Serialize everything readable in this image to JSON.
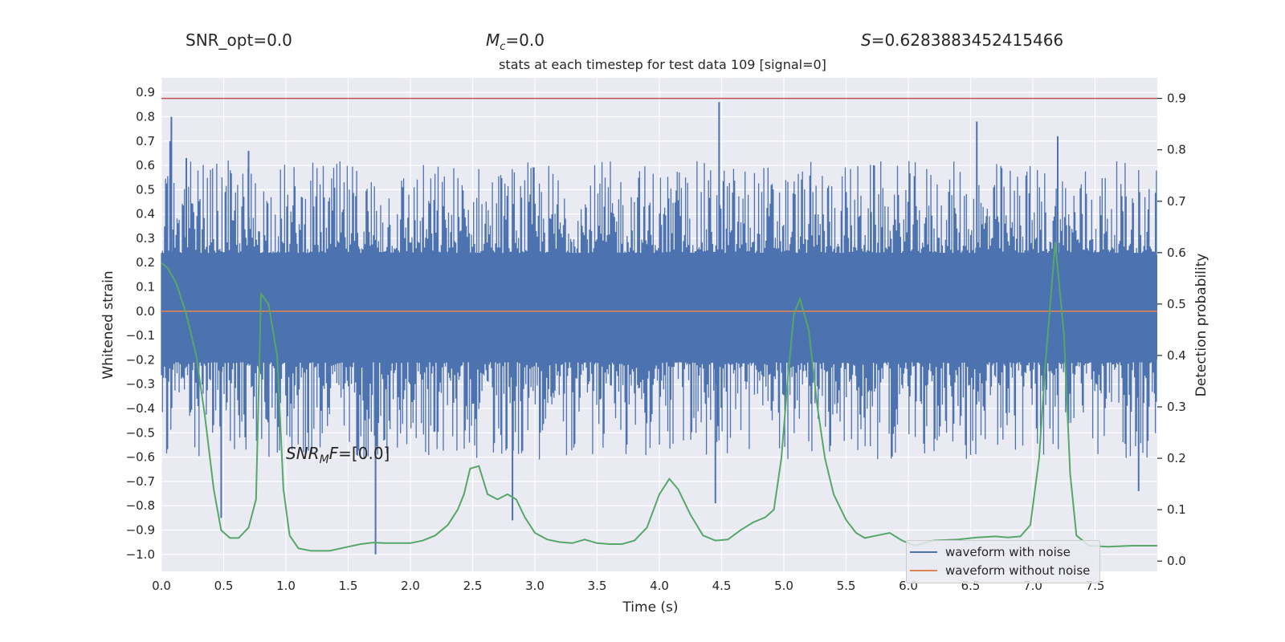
{
  "header": {
    "snr_opt": "SNR_opt=0.0",
    "mc_symbol": "M",
    "mc_sub": "c",
    "mc_value": "=0.0",
    "s_symbol": "S",
    "s_value": "=0.6283883452415466",
    "title": "stats at each timestep for test data 109 [signal=0]"
  },
  "annotation": {
    "snr_sym": "SNR",
    "snr_sub": "M",
    "snr_sym2": "F",
    "snr_value": "=[0.0]"
  },
  "legend": {
    "entries": [
      {
        "label": "waveform with noise",
        "color": "#4c72b0"
      },
      {
        "label": "waveform without noise",
        "color": "#dd8452"
      }
    ]
  },
  "colors": {
    "plot_bg": "#eaeaf2",
    "grid": "#ffffff",
    "noise": "#4c72b0",
    "no_noise": "#dd8452",
    "probability": "#55a868",
    "threshold": "#c44e52"
  },
  "chart_data": {
    "type": "line",
    "xlabel": "Time (s)",
    "ylabel_left": "Whitened strain",
    "ylabel_right": "Detection probability",
    "xlim": [
      0.0,
      8.0
    ],
    "ylim_left": [
      -1.07,
      0.96
    ],
    "ylim_right": [
      -0.02,
      0.94
    ],
    "x_ticks": [
      "0.0",
      "0.5",
      "1.0",
      "1.5",
      "2.0",
      "2.5",
      "3.0",
      "3.5",
      "4.0",
      "4.5",
      "5.0",
      "5.5",
      "6.0",
      "6.5",
      "7.0",
      "7.5"
    ],
    "y_left_ticks": [
      "0.9",
      "0.8",
      "0.7",
      "0.6",
      "0.5",
      "0.4",
      "0.3",
      "0.2",
      "0.1",
      "0.0",
      "−0.1",
      "−0.2",
      "−0.3",
      "−0.4",
      "−0.5",
      "−0.6",
      "−0.7",
      "−0.8",
      "−0.9",
      "−1.0"
    ],
    "y_right_ticks": [
      "0.9",
      "0.8",
      "0.7",
      "0.6",
      "0.5",
      "0.4",
      "0.3",
      "0.2",
      "0.1",
      "0.0"
    ],
    "grid": true,
    "legend_position": "lower-right",
    "series": [
      {
        "name": "waveform with noise",
        "description_band": {
          "core": [
            -0.2,
            0.23
          ],
          "typical_peak": [
            -0.42,
            0.45
          ]
        },
        "spikes": [
          {
            "x": 0.08,
            "y": 0.8
          },
          {
            "x": 0.07,
            "y": 0.7
          },
          {
            "x": 0.2,
            "y": 0.63
          },
          {
            "x": 0.7,
            "y": 0.66
          },
          {
            "x": 4.48,
            "y": 0.86
          },
          {
            "x": 6.55,
            "y": 0.78
          },
          {
            "x": 7.2,
            "y": 0.72
          },
          {
            "x": 1.72,
            "y": -1.0
          },
          {
            "x": 2.82,
            "y": -0.86
          },
          {
            "x": 0.48,
            "y": -0.85
          },
          {
            "x": 4.45,
            "y": -0.79
          },
          {
            "x": 7.85,
            "y": -0.74
          }
        ]
      },
      {
        "name": "waveform without noise",
        "values": [
          [
            0.0,
            0.0
          ],
          [
            8.0,
            0.0
          ]
        ]
      },
      {
        "name": "detection probability",
        "axis": "right",
        "points": [
          [
            0.0,
            0.58
          ],
          [
            0.05,
            0.57
          ],
          [
            0.12,
            0.54
          ],
          [
            0.2,
            0.48
          ],
          [
            0.28,
            0.4
          ],
          [
            0.35,
            0.28
          ],
          [
            0.42,
            0.14
          ],
          [
            0.48,
            0.06
          ],
          [
            0.55,
            0.045
          ],
          [
            0.62,
            0.045
          ],
          [
            0.7,
            0.065
          ],
          [
            0.76,
            0.12
          ],
          [
            0.8,
            0.52
          ],
          [
            0.86,
            0.5
          ],
          [
            0.93,
            0.4
          ],
          [
            0.98,
            0.14
          ],
          [
            1.03,
            0.05
          ],
          [
            1.1,
            0.025
          ],
          [
            1.2,
            0.02
          ],
          [
            1.35,
            0.02
          ],
          [
            1.5,
            0.028
          ],
          [
            1.6,
            0.033
          ],
          [
            1.7,
            0.036
          ],
          [
            1.8,
            0.035
          ],
          [
            1.9,
            0.035
          ],
          [
            2.0,
            0.035
          ],
          [
            2.1,
            0.04
          ],
          [
            2.2,
            0.05
          ],
          [
            2.3,
            0.07
          ],
          [
            2.38,
            0.1
          ],
          [
            2.43,
            0.13
          ],
          [
            2.48,
            0.18
          ],
          [
            2.55,
            0.185
          ],
          [
            2.62,
            0.13
          ],
          [
            2.7,
            0.12
          ],
          [
            2.78,
            0.13
          ],
          [
            2.85,
            0.12
          ],
          [
            2.92,
            0.085
          ],
          [
            3.0,
            0.055
          ],
          [
            3.1,
            0.042
          ],
          [
            3.2,
            0.037
          ],
          [
            3.3,
            0.035
          ],
          [
            3.4,
            0.042
          ],
          [
            3.5,
            0.035
          ],
          [
            3.6,
            0.033
          ],
          [
            3.7,
            0.033
          ],
          [
            3.8,
            0.04
          ],
          [
            3.9,
            0.065
          ],
          [
            4.0,
            0.13
          ],
          [
            4.08,
            0.16
          ],
          [
            4.15,
            0.14
          ],
          [
            4.25,
            0.09
          ],
          [
            4.35,
            0.05
          ],
          [
            4.45,
            0.04
          ],
          [
            4.55,
            0.042
          ],
          [
            4.65,
            0.06
          ],
          [
            4.75,
            0.075
          ],
          [
            4.85,
            0.085
          ],
          [
            4.92,
            0.1
          ],
          [
            4.98,
            0.2
          ],
          [
            5.03,
            0.35
          ],
          [
            5.08,
            0.48
          ],
          [
            5.13,
            0.51
          ],
          [
            5.2,
            0.45
          ],
          [
            5.27,
            0.3
          ],
          [
            5.33,
            0.2
          ],
          [
            5.4,
            0.13
          ],
          [
            5.5,
            0.08
          ],
          [
            5.58,
            0.055
          ],
          [
            5.65,
            0.045
          ],
          [
            5.75,
            0.05
          ],
          [
            5.85,
            0.055
          ],
          [
            5.95,
            0.04
          ],
          [
            6.05,
            0.03
          ],
          [
            6.2,
            0.04
          ],
          [
            6.4,
            0.042
          ],
          [
            6.55,
            0.046
          ],
          [
            6.7,
            0.048
          ],
          [
            6.8,
            0.046
          ],
          [
            6.9,
            0.048
          ],
          [
            6.98,
            0.07
          ],
          [
            7.05,
            0.2
          ],
          [
            7.1,
            0.38
          ],
          [
            7.18,
            0.62
          ],
          [
            7.25,
            0.44
          ],
          [
            7.3,
            0.17
          ],
          [
            7.35,
            0.05
          ],
          [
            7.45,
            0.03
          ],
          [
            7.6,
            0.028
          ],
          [
            7.8,
            0.03
          ],
          [
            8.0,
            0.03
          ]
        ]
      },
      {
        "name": "threshold",
        "axis": "right",
        "values": [
          [
            0.0,
            0.9
          ],
          [
            8.0,
            0.9
          ]
        ]
      }
    ]
  }
}
